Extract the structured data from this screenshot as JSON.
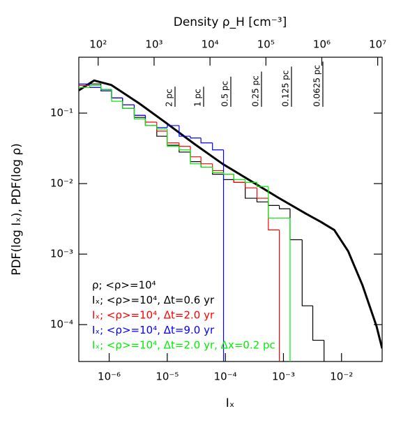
{
  "chart_data": {
    "type": "line",
    "title": "Density ρ_H [cm⁻³]",
    "xlabel": "Iₓ",
    "ylabel": "PDF(log Iₓ), PDF(log ρ)",
    "xscale": "log",
    "yscale": "log",
    "xlim": [
      3e-07,
      0.05
    ],
    "xticks": [
      {
        "value": 1e-06,
        "label": "10⁻⁶"
      },
      {
        "value": 1e-05,
        "label": "10⁻⁵"
      },
      {
        "value": 0.0001,
        "label": "10⁻⁴"
      },
      {
        "value": 0.001,
        "label": "10⁻³"
      },
      {
        "value": 0.01,
        "label": "10⁻²"
      }
    ],
    "ylim": [
      3e-05,
      0.62
    ],
    "yticks": [
      {
        "value": 0.1,
        "label": "10⁻¹"
      },
      {
        "value": 0.01,
        "label": "10⁻²"
      },
      {
        "value": 0.001,
        "label": "10⁻³"
      },
      {
        "value": 0.0001,
        "label": "10⁻⁴"
      }
    ],
    "x2lim": [
      45,
      12000000
    ],
    "x2ticks": [
      {
        "value": 100,
        "label": "10²"
      },
      {
        "value": 1000,
        "label": "10³"
      },
      {
        "value": 10000,
        "label": "10⁴"
      },
      {
        "value": 100000,
        "label": "10⁵"
      },
      {
        "value": 1000000,
        "label": "10⁶"
      },
      {
        "value": 10000000,
        "label": "10⁷"
      }
    ],
    "annotations": [
      "2 pc",
      "1 pc",
      "0.5 pc",
      "0.25 pc",
      "0.125 pc",
      "0.0625 pc"
    ],
    "series": [
      {
        "name": "ρ; <ρ>=10⁴",
        "color": "#000000",
        "width": 3,
        "step": false,
        "x": [
          3e-07,
          5.5e-07,
          1.09e-06,
          3.3e-06,
          9.9e-06,
          3e-05,
          9e-05,
          0.00027,
          0.00082,
          0.0025,
          0.0043,
          0.0075,
          0.013,
          0.023,
          0.04,
          0.05
        ],
        "values": [
          0.21,
          0.29,
          0.25,
          0.137,
          0.071,
          0.036,
          0.019,
          0.011,
          0.0063,
          0.0037,
          0.0029,
          0.0022,
          0.0011,
          0.00036,
          9.5e-05,
          4.6e-05
        ]
      },
      {
        "name": "Iₓ; <ρ>=10⁴, Δt=0.6 yr",
        "color": "#000000",
        "width": 1.2,
        "step": true,
        "x": [
          3e-07,
          4.6e-07,
          7.2e-07,
          1.1e-06,
          1.7e-06,
          2.7e-06,
          4.2e-06,
          6.6e-06,
          1e-05,
          1.6e-05,
          2.5e-05,
          3.8e-05,
          6e-05,
          9.3e-05,
          0.00014,
          0.00022,
          0.00035,
          0.00055,
          0.00085,
          0.0013,
          0.0021,
          0.0032,
          0.005
        ],
        "values": [
          0.247,
          0.259,
          0.216,
          0.164,
          0.117,
          0.087,
          0.0665,
          0.047,
          0.035,
          0.028,
          0.0205,
          0.0171,
          0.0136,
          0.0114,
          0.0104,
          0.0062,
          0.0055,
          0.0049,
          0.0044,
          0.0016,
          0.000185,
          6e-05,
          0
        ]
      },
      {
        "name": "Iₓ; <ρ>=10⁴, Δt=2.0 yr",
        "color": "#ff0000",
        "width": 1.2,
        "step": true,
        "x": [
          3e-07,
          4.6e-07,
          7.2e-07,
          1.1e-06,
          1.7e-06,
          2.7e-06,
          4.2e-06,
          6.6e-06,
          1e-05,
          1.6e-05,
          2.5e-05,
          3.8e-05,
          6e-05,
          9.3e-05,
          0.00014,
          0.00022,
          0.00035,
          0.00055,
          0.00085
        ],
        "values": [
          0.247,
          0.231,
          0.207,
          0.164,
          0.131,
          0.093,
          0.0745,
          0.0555,
          0.0378,
          0.0337,
          0.024,
          0.0191,
          0.0153,
          0.0136,
          0.0104,
          0.0087,
          0.0062,
          0.0022,
          0
        ]
      },
      {
        "name": "Iₓ; <ρ>=10⁴, Δt=9.0 yr",
        "color": "#0000ff",
        "width": 1.2,
        "step": true,
        "x": [
          3e-07,
          4.6e-07,
          7.2e-07,
          1.1e-06,
          1.7e-06,
          2.7e-06,
          4.2e-06,
          6.6e-06,
          1e-05,
          1.6e-05,
          2.5e-05,
          3.8e-05,
          6e-05,
          9.3e-05
        ],
        "values": [
          0.259,
          0.231,
          0.207,
          0.164,
          0.131,
          0.093,
          0.0665,
          0.0622,
          0.0665,
          0.047,
          0.0443,
          0.0378,
          0.0301,
          0
        ]
      },
      {
        "name": "Iₓ; <ρ>=10⁴, Δt=2.0 yr, Δx=0.2 pc",
        "color": "#00ee00",
        "width": 1.2,
        "step": true,
        "x": [
          3e-07,
          4.6e-07,
          7.2e-07,
          1.1e-06,
          1.7e-06,
          2.7e-06,
          4.2e-06,
          6.6e-06,
          1e-05,
          1.6e-05,
          2.5e-05,
          3.8e-05,
          6e-05,
          9.3e-05,
          0.00014,
          0.00022,
          0.00035,
          0.00055,
          0.00085,
          0.0013
        ],
        "values": [
          0.231,
          0.247,
          0.216,
          0.147,
          0.117,
          0.083,
          0.0665,
          0.0594,
          0.0337,
          0.0301,
          0.0191,
          0.0171,
          0.0143,
          0.0136,
          0.0114,
          0.0104,
          0.0091,
          0.00325,
          0.00325,
          0
        ]
      }
    ]
  }
}
